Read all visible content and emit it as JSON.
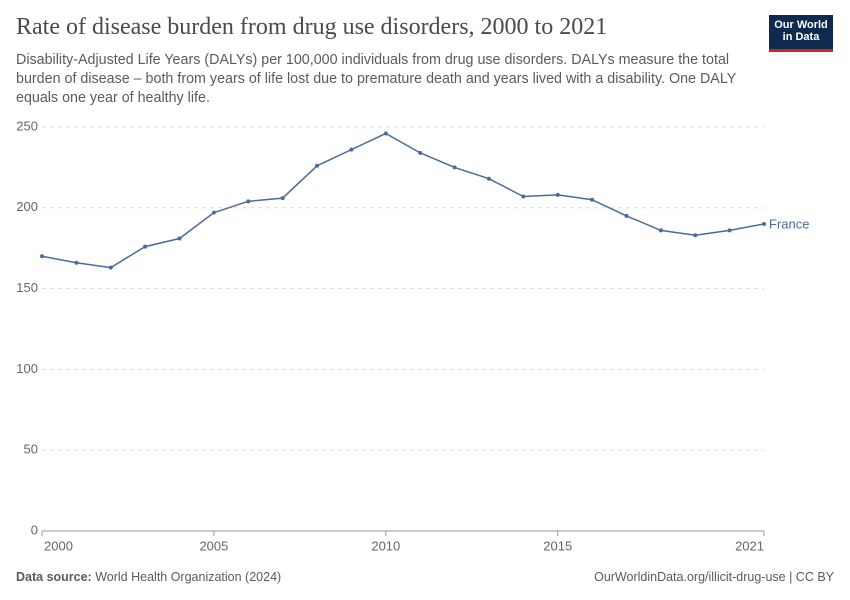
{
  "chart_data": {
    "type": "line",
    "title": "Rate of disease burden from drug use disorders, 2000 to 2021",
    "subtitle": "Disability-Adjusted Life Years (DALYs) per 100,000 individuals from drug use disorders. DALYs measure the total burden of disease – both from years of life lost due to premature death and years lived with a disability. One DALY equals one year of healthy life.",
    "x": [
      2000,
      2001,
      2002,
      2003,
      2004,
      2005,
      2006,
      2007,
      2008,
      2009,
      2010,
      2011,
      2012,
      2013,
      2014,
      2015,
      2016,
      2017,
      2018,
      2019,
      2020,
      2021
    ],
    "series": [
      {
        "name": "France",
        "color": "#4c6a9c",
        "values": [
          170,
          166,
          163,
          176,
          181,
          197,
          204,
          206,
          226,
          236,
          246,
          234,
          225,
          218,
          207,
          208,
          205,
          195,
          186,
          183,
          186,
          190
        ]
      }
    ],
    "xlim": [
      2000,
      2021
    ],
    "xticks": [
      2000,
      2005,
      2010,
      2015,
      2021
    ],
    "ylim": [
      0,
      250
    ],
    "yticks": [
      0,
      50,
      100,
      150,
      200,
      250
    ],
    "grid": true,
    "source_label": "Data source:",
    "source": "World Health Organization (2024)",
    "url": "OurWorldinData.org/illicit-drug-use | CC BY",
    "logo": [
      "Our World",
      "in Data"
    ]
  }
}
